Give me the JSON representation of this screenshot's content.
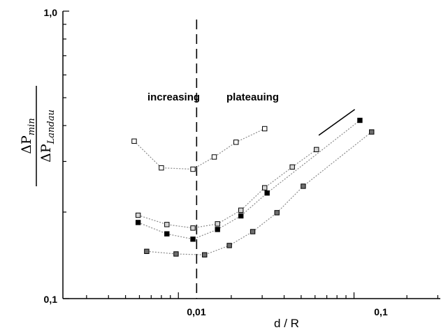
{
  "chart_data": {
    "type": "scatter",
    "title": "",
    "xlabel": "d / R",
    "ylabel_numerator": {
      "symbol": "ΔP",
      "subscript": "min"
    },
    "ylabel_denominator": {
      "symbol": "ΔP",
      "subscript": "Landau"
    },
    "xscale": "log",
    "yscale": "log",
    "xlim": [
      0.0022,
      0.31
    ],
    "ylim": [
      0.1,
      1.0
    ],
    "x_tick_labels": [
      {
        "value": 0.01,
        "label": "0,01"
      },
      {
        "value": 0.1,
        "label": "0,1"
      }
    ],
    "y_tick_labels": [
      {
        "value": 0.1,
        "label": "0,1"
      },
      {
        "value": 1.0,
        "label": "1,0"
      }
    ],
    "grid": false,
    "legend": "none",
    "annotations": [
      {
        "text": "increasing",
        "x": 0.0036,
        "y": 0.625
      },
      {
        "text": "plateauing",
        "x": 0.0137,
        "y": 0.625
      }
    ],
    "vertical_line": {
      "x": 0.0127,
      "style": "dashed"
    },
    "slope_line": {
      "x": [
        0.063,
        0.101
      ],
      "y": [
        0.37,
        0.455
      ]
    },
    "series": [
      {
        "marker": "open-square",
        "x": [
          0.0056,
          0.008,
          0.0121,
          0.016,
          0.0213,
          0.031
        ],
        "y": [
          0.353,
          0.285,
          0.282,
          0.311,
          0.35,
          0.39
        ]
      },
      {
        "marker": "light-gray-square",
        "x": [
          0.0059,
          0.0086,
          0.0121,
          0.0167,
          0.0227,
          0.031,
          0.0445,
          0.0611
        ],
        "y": [
          0.195,
          0.181,
          0.176,
          0.182,
          0.203,
          0.243,
          0.287,
          0.33
        ]
      },
      {
        "marker": "filled-square",
        "x": [
          0.0059,
          0.0086,
          0.0121,
          0.0167,
          0.0227,
          0.032,
          0.108
        ],
        "y": [
          0.184,
          0.168,
          0.161,
          0.174,
          0.194,
          0.233,
          0.417
        ]
      },
      {
        "marker": "dark-gray-square",
        "x": [
          0.0066,
          0.0097,
          0.0141,
          0.0195,
          0.0265,
          0.0364,
          0.0514,
          0.126
        ],
        "y": [
          0.146,
          0.143,
          0.142,
          0.153,
          0.171,
          0.199,
          0.246,
          0.38
        ]
      }
    ],
    "colors": {
      "open-square": "#ffffff",
      "light-gray-square": "#d6d6d6",
      "filled-square": "#000000",
      "dark-gray-square": "#6e6e6e",
      "connector": "#8a8a8a",
      "axis": "#000000"
    }
  }
}
